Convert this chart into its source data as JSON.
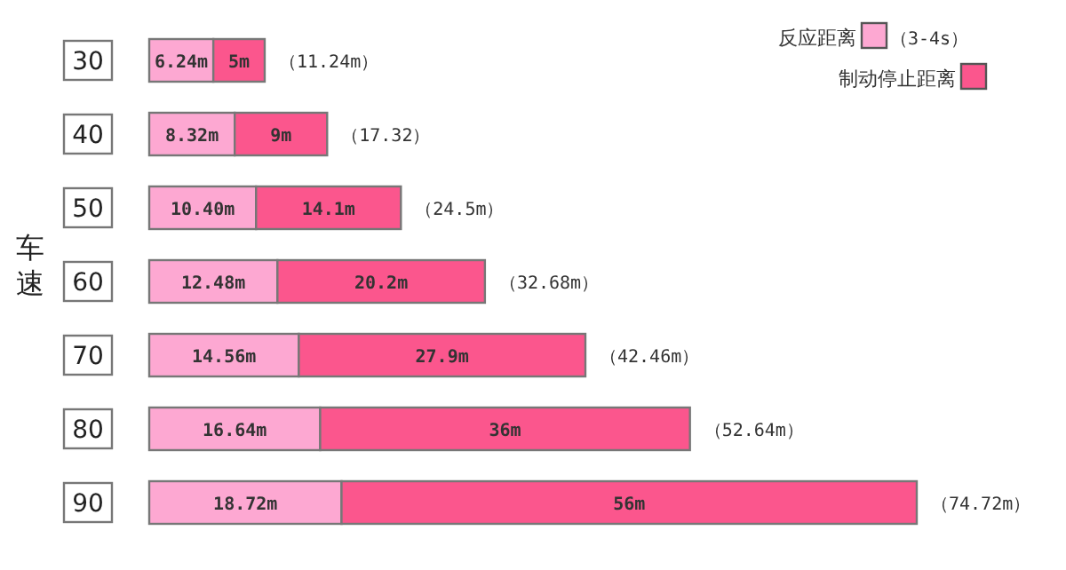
{
  "chart_data": {
    "type": "bar",
    "orientation": "horizontal",
    "stacked": true,
    "ylabel": "车速",
    "categories": [
      "30",
      "40",
      "50",
      "60",
      "70",
      "80",
      "90"
    ],
    "series": [
      {
        "name": "反应距离",
        "color": "#fda8d2",
        "values": [
          6.24,
          8.32,
          10.4,
          12.48,
          14.56,
          16.64,
          18.72
        ],
        "value_labels": [
          "6.24m",
          "8.32m",
          "10.40m",
          "12.48m",
          "14.56m",
          "16.64m",
          "18.72m"
        ]
      },
      {
        "name": "制动停止距离",
        "color": "#fb568d",
        "values": [
          5,
          9,
          14.1,
          20.2,
          27.9,
          36,
          56
        ],
        "value_labels": [
          "5m",
          "9m",
          "14.1m",
          "20.2m",
          "27.9m",
          "36m",
          "56m"
        ]
      }
    ],
    "totals": [
      "（11.24m）",
      "（17.32）",
      "（24.5m）",
      "（32.68m）",
      "（42.46m）",
      "（52.64m）",
      "（74.72m）"
    ],
    "annotations": [
      "（3-4s）"
    ],
    "legend": "top right"
  }
}
